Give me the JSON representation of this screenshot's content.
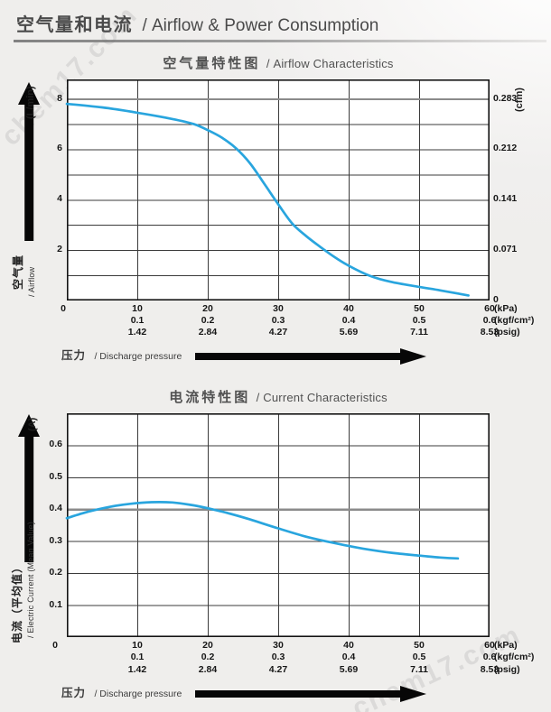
{
  "header": {
    "title_zh": "空气量和电流",
    "title_en": "/ Airflow & Power Consumption"
  },
  "watermark": {
    "text": "chem17.com"
  },
  "pressure_axis": {
    "label_zh": "压力",
    "label_en": "/ Discharge pressure",
    "ticks_kpa": [
      0,
      10,
      20,
      30,
      40,
      50,
      60
    ],
    "rows": [
      {
        "unit": "(kPa)",
        "labels": [
          "0",
          "10",
          "20",
          "30",
          "40",
          "50",
          "60"
        ]
      },
      {
        "unit": "(kgf/cm²)",
        "labels": [
          "",
          "0.1",
          "0.2",
          "0.3",
          "0.4",
          "0.5",
          "0.6"
        ]
      },
      {
        "unit": "(psig)",
        "labels": [
          "",
          "1.42",
          "2.84",
          "4.27",
          "5.69",
          "7.11",
          "8.53"
        ]
      }
    ]
  },
  "chart_data": [
    {
      "type": "line",
      "title_zh": "空气量特性图",
      "title_en": "/ Airflow Characteristics",
      "ylabel_zh": "空气量",
      "ylabel_en": "/ Airflow",
      "y_unit_left": "(L/min)",
      "y_unit_right": "(cfm)",
      "xlabel_zh": "压力",
      "xlabel_en": "/ Discharge pressure",
      "xlim": [
        0,
        60
      ],
      "ylim": [
        0,
        8.77
      ],
      "x_gridlines": [
        10,
        20,
        30,
        40,
        50
      ],
      "y_gridlines": [
        1,
        2,
        3,
        4,
        5,
        6,
        7,
        8
      ],
      "emphasis_y": 8,
      "grid": true,
      "yticks_left": [
        {
          "value": 8,
          "label": "8"
        },
        {
          "value": 6,
          "label": "6"
        },
        {
          "value": 4,
          "label": "4"
        },
        {
          "value": 2,
          "label": "2"
        }
      ],
      "yticks_right": [
        {
          "value": 8,
          "label": "0.283"
        },
        {
          "value": 6,
          "label": "0.212"
        },
        {
          "value": 4,
          "label": "0.141"
        },
        {
          "value": 2,
          "label": "0.071"
        },
        {
          "value": 0,
          "label": "0"
        }
      ],
      "series": [
        {
          "name": "airflow-vs-pressure",
          "color": "#29a5de",
          "points": [
            [
              0,
              7.8
            ],
            [
              5,
              7.66
            ],
            [
              10,
              7.45
            ],
            [
              15,
              7.2
            ],
            [
              18,
              7.0
            ],
            [
              20,
              6.76
            ],
            [
              22,
              6.46
            ],
            [
              24,
              6.04
            ],
            [
              26,
              5.44
            ],
            [
              28,
              4.64
            ],
            [
              30,
              3.82
            ],
            [
              32,
              3.05
            ],
            [
              34,
              2.55
            ],
            [
              36,
              2.12
            ],
            [
              38,
              1.72
            ],
            [
              40,
              1.38
            ],
            [
              43,
              0.98
            ],
            [
              46,
              0.74
            ],
            [
              50,
              0.54
            ],
            [
              53,
              0.4
            ],
            [
              57,
              0.2
            ]
          ]
        }
      ]
    },
    {
      "type": "line",
      "title_zh": "电流特性图",
      "title_en": "/ Current Characteristics",
      "ylabel_zh": "电流（平均值）",
      "ylabel_en": "/ Electric Current (Mean Value)",
      "y_unit_left": "(A)",
      "y_unit_right": "",
      "xlabel_zh": "压力",
      "xlabel_en": "/ Discharge pressure",
      "xlim": [
        0,
        60
      ],
      "ylim": [
        0,
        0.7
      ],
      "x_gridlines": [
        10,
        20,
        30,
        40,
        50
      ],
      "y_gridlines": [
        0.1,
        0.2,
        0.3,
        0.4,
        0.5,
        0.6
      ],
      "emphasis_y": 0.4,
      "grid": true,
      "yticks_left": [
        {
          "value": 0.6,
          "label": "0.6"
        },
        {
          "value": 0.5,
          "label": "0.5"
        },
        {
          "value": 0.4,
          "label": "0.4"
        },
        {
          "value": 0.3,
          "label": "0.3"
        },
        {
          "value": 0.2,
          "label": "0.2"
        },
        {
          "value": 0.1,
          "label": "0.1"
        }
      ],
      "yticks_right": [],
      "series": [
        {
          "name": "current-vs-pressure",
          "color": "#29a5de",
          "points": [
            [
              0,
              0.372
            ],
            [
              3,
              0.392
            ],
            [
              6,
              0.407
            ],
            [
              9,
              0.417
            ],
            [
              12,
              0.422
            ],
            [
              15,
              0.421
            ],
            [
              18,
              0.412
            ],
            [
              20,
              0.403
            ],
            [
              23,
              0.387
            ],
            [
              26,
              0.368
            ],
            [
              30,
              0.34
            ],
            [
              34,
              0.314
            ],
            [
              38,
              0.294
            ],
            [
              42,
              0.277
            ],
            [
              46,
              0.264
            ],
            [
              50,
              0.255
            ],
            [
              53,
              0.249
            ],
            [
              55.5,
              0.246
            ]
          ]
        }
      ]
    }
  ]
}
